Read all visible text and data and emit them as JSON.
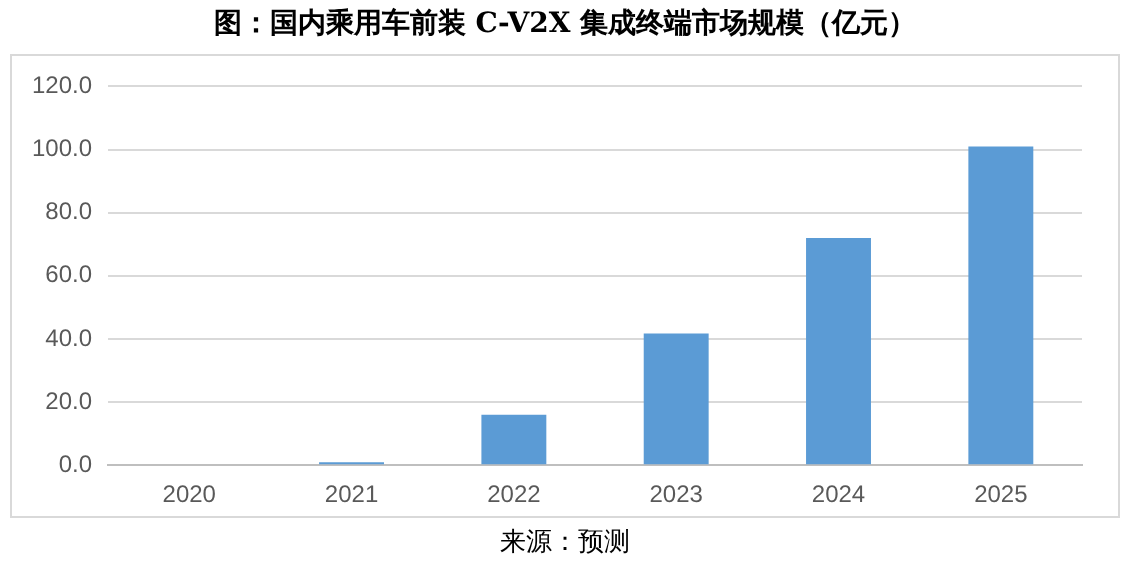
{
  "chart_data": {
    "type": "bar",
    "title": "图：国内乘用车前装 C-V2X 集成终端市场规模（亿元）",
    "categories": [
      "2020",
      "2021",
      "2022",
      "2023",
      "2024",
      "2025"
    ],
    "values": [
      0,
      0.9,
      16,
      41.7,
      72,
      101
    ],
    "color": "#5b9bd5",
    "ylim": [
      0,
      120
    ],
    "yticks": [
      {
        "value": 0,
        "label": "0.0"
      },
      {
        "value": 20,
        "label": "20.0"
      },
      {
        "value": 40,
        "label": "40.0"
      },
      {
        "value": 60,
        "label": "60.0"
      },
      {
        "value": 80,
        "label": "80.0"
      },
      {
        "value": 100,
        "label": "100.0"
      },
      {
        "value": 120,
        "label": "120.0"
      }
    ],
    "grid": "y",
    "annotations": [
      "来源：预测"
    ]
  }
}
